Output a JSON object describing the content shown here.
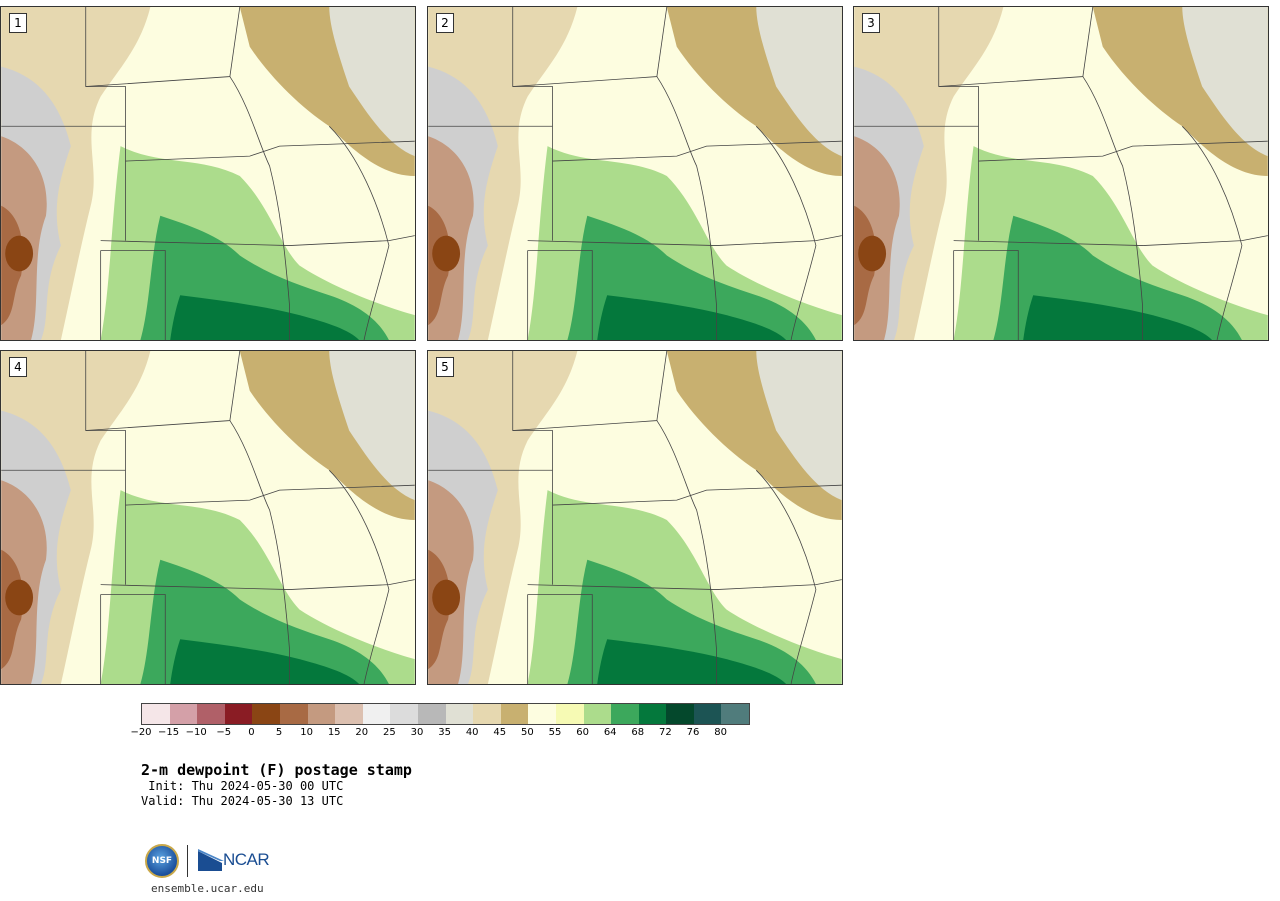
{
  "panels": [
    {
      "label": "1"
    },
    {
      "label": "2"
    },
    {
      "label": "3"
    },
    {
      "label": "4"
    },
    {
      "label": "5"
    }
  ],
  "colorbar": {
    "colors": [
      "#f5e6e8",
      "#d4a0a8",
      "#b06068",
      "#8a1c24",
      "#8a4514",
      "#a86a44",
      "#c49a80",
      "#dcc0b0",
      "#f0f0f0",
      "#dcdcdc",
      "#b8b8b8",
      "#e0e0d4",
      "#e6d8b0",
      "#c8b070",
      "#fdfde0",
      "#f6fab4",
      "#acdc8c",
      "#3ca85c",
      "#04783c",
      "#04482c",
      "#1c5454",
      "#507c7c"
    ],
    "ticks": [
      "−20",
      "−15",
      "−10",
      "−5",
      "0",
      "5",
      "10",
      "15",
      "20",
      "25",
      "30",
      "35",
      "40",
      "45",
      "50",
      "55",
      "60",
      "64",
      "68",
      "72",
      "76",
      "80"
    ]
  },
  "title": "2-m dewpoint (F) postage stamp",
  "init": " Init: Thu 2024-05-30 00 UTC",
  "valid": "Valid: Thu 2024-05-30 13 UTC",
  "logo": {
    "nsf": "NSF",
    "ncar": "NCAR"
  },
  "site": "ensemble.ucar.edu"
}
